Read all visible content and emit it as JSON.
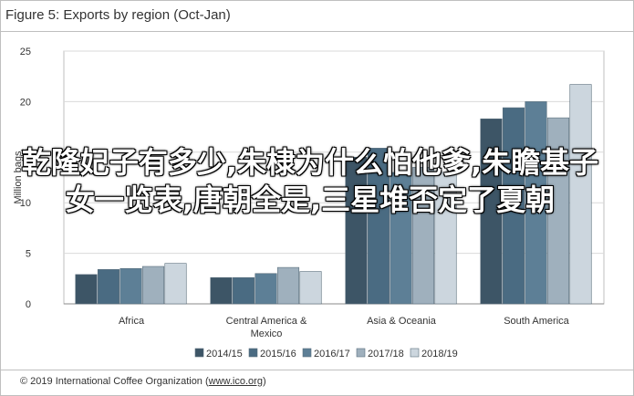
{
  "title": "Figure 5: Exports by region (Oct-Jan)",
  "footer": {
    "prefix": "© 2019 International Coffee Organization (",
    "link": "www.ico.org",
    "suffix": ")"
  },
  "overlay_text": "乾隆妃子有多少,朱棣为什么怕他爹,朱瞻基子女一览表,唐朝全是,三星堆否定了夏朝",
  "chart_data": {
    "type": "bar",
    "title": "Figure 5: Exports by region (Oct-Jan)",
    "ylabel": "Million bags",
    "xlabel": "",
    "ylim": [
      0,
      25
    ],
    "yticks": [
      0,
      5,
      10,
      15,
      20,
      25
    ],
    "grid": true,
    "legend": "bottom",
    "categories": [
      "Africa",
      "Central America & Mexico",
      "Asia & Oceania",
      "South America"
    ],
    "category_lines": [
      [
        "Africa"
      ],
      [
        "Central America &",
        "Mexico"
      ],
      [
        "Asia & Oceania"
      ],
      [
        "South America"
      ]
    ],
    "series": [
      {
        "name": "2014/15",
        "color": "#3d5566",
        "values": [
          2.9,
          2.6,
          14.5,
          18.3
        ]
      },
      {
        "name": "2015/16",
        "color": "#4a6b82",
        "values": [
          3.4,
          2.6,
          15.4,
          19.4
        ]
      },
      {
        "name": "2016/17",
        "color": "#5d7f96",
        "values": [
          3.5,
          3.0,
          13.0,
          20.0
        ]
      },
      {
        "name": "2017/18",
        "color": "#9fb0bd",
        "values": [
          3.7,
          3.6,
          13.5,
          18.4
        ]
      },
      {
        "name": "2018/19",
        "color": "#ccd6de",
        "values": [
          4.0,
          3.2,
          13.0,
          21.7
        ]
      }
    ]
  }
}
